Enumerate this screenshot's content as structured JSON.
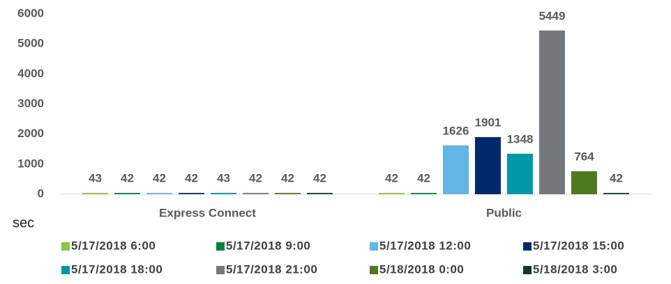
{
  "chart_data": {
    "type": "bar",
    "y_label": "sec",
    "categories": [
      "Express Connect",
      "Public"
    ],
    "ylim": [
      0,
      6000
    ],
    "yticks": [
      0,
      1000,
      2000,
      3000,
      4000,
      5000,
      6000
    ],
    "series": [
      {
        "name": "5/17/2018 6:00",
        "color": "#8dc63f",
        "values": [
          43,
          42
        ]
      },
      {
        "name": "5/17/2018 9:00",
        "color": "#00843d",
        "values": [
          42,
          42
        ]
      },
      {
        "name": "5/17/2018 12:00",
        "color": "#62b5e5",
        "values": [
          42,
          1626
        ]
      },
      {
        "name": "5/17/2018 15:00",
        "color": "#002a6c",
        "values": [
          42,
          1901
        ]
      },
      {
        "name": "5/17/2018 18:00",
        "color": "#0098a6",
        "values": [
          43,
          1348
        ]
      },
      {
        "name": "5/17/2018 21:00",
        "color": "#75787b",
        "values": [
          42,
          5449
        ]
      },
      {
        "name": "5/18/2018 0:00",
        "color": "#4e7a1e",
        "values": [
          42,
          764
        ]
      },
      {
        "name": "5/18/2018 3:00",
        "color": "#0b3d25",
        "values": [
          42,
          42
        ]
      }
    ]
  }
}
